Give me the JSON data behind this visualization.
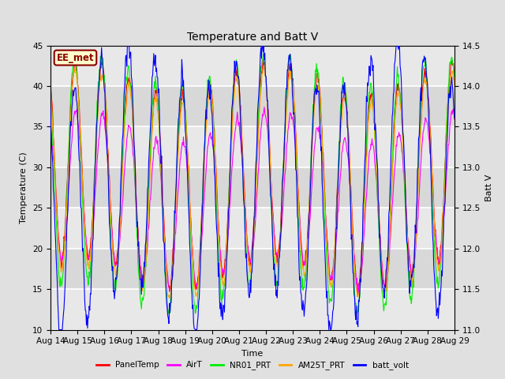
{
  "title": "Temperature and Batt V",
  "xlabel": "Time",
  "ylabel_left": "Temperature (C)",
  "ylabel_right": "Batt V",
  "station_label": "EE_met",
  "ylim_left": [
    10,
    45
  ],
  "ylim_right": [
    11.0,
    14.5
  ],
  "xtick_labels": [
    "Aug 14",
    "Aug 15",
    "Aug 16",
    "Aug 17",
    "Aug 18",
    "Aug 19",
    "Aug 20",
    "Aug 21",
    "Aug 22",
    "Aug 23",
    "Aug 24",
    "Aug 25",
    "Aug 26",
    "Aug 27",
    "Aug 28",
    "Aug 29"
  ],
  "yticks_left": [
    10,
    15,
    20,
    25,
    30,
    35,
    40,
    45
  ],
  "yticks_right": [
    11.0,
    11.5,
    12.0,
    12.5,
    13.0,
    13.5,
    14.0,
    14.5
  ],
  "colors": {
    "PanelTemp": "#ff0000",
    "AirT": "#ff00ff",
    "NR01_PRT": "#00ee00",
    "AM25T_PRT": "#ffa500",
    "batt_volt": "#0000ff"
  },
  "legend_labels": [
    "PanelTemp",
    "AirT",
    "NR01_PRT",
    "AM25T_PRT",
    "batt_volt"
  ],
  "bg_color": "#e0e0e0",
  "plot_bg_color": "#dcdcdc",
  "station_box_facecolor": "#ffffcc",
  "station_box_edgecolor": "#8b0000",
  "station_text_color": "#8b0000",
  "linewidth": 0.8,
  "title_fontsize": 10,
  "axis_fontsize": 8,
  "tick_fontsize": 7.5
}
